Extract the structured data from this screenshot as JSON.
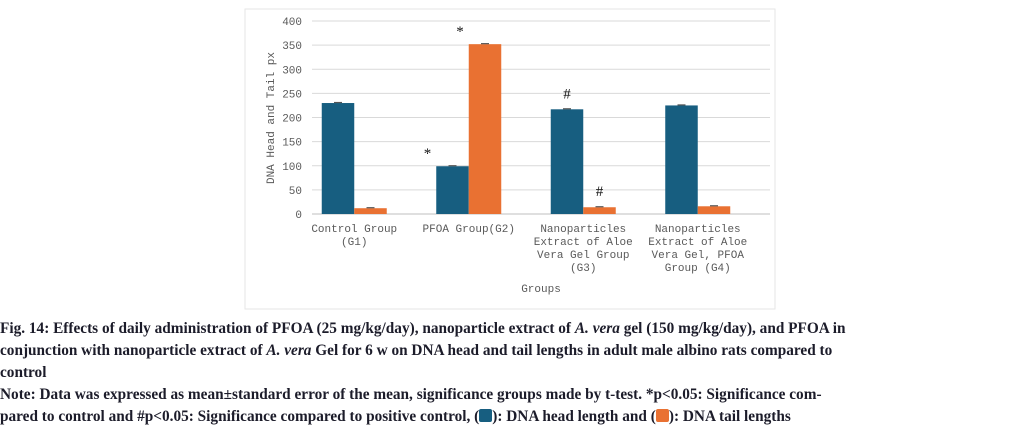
{
  "chart_data": {
    "type": "bar",
    "title": "",
    "xlabel": "Groups",
    "ylabel": "DNA Head and Tail px",
    "ylim": [
      0,
      400
    ],
    "yticks": [
      0,
      50,
      100,
      150,
      200,
      250,
      300,
      350,
      400
    ],
    "grid": true,
    "categories": [
      [
        "Control Group",
        "(G1)"
      ],
      [
        "PFOA Group(G2)"
      ],
      [
        "Nanoparticles",
        "Extract of Aloe",
        "Vera Gel Group",
        "(G3)"
      ],
      [
        "Nanoparticles",
        "Extract of Aloe",
        "Vera Gel, PFOA",
        "Group (G4)"
      ]
    ],
    "series": [
      {
        "color": "#175e80",
        "values": [
          230,
          99,
          217,
          225
        ]
      },
      {
        "color": "#e97132",
        "values": [
          12,
          352,
          14,
          16
        ]
      }
    ],
    "annotations": [
      {
        "group": 1,
        "series": 0,
        "text": "*"
      },
      {
        "group": 1,
        "series": 1,
        "text": "*"
      },
      {
        "group": 2,
        "series": 0,
        "text": "#"
      },
      {
        "group": 2,
        "series": 1,
        "text": "#"
      }
    ]
  },
  "caption": {
    "line1": "Fig. 14: Effects of daily administration of PFOA (25 mg/kg/day), nanoparticle extract of ",
    "line1_italic": "A. vera",
    "line1_end": " gel (150 mg/kg/day), and PFOA in",
    "line2": "conjunction with nanoparticle extract of ",
    "line2_italic": "A. vera",
    "line2_end": " Gel for 6 w on DNA head and tail lengths in adult male albino rats compared to",
    "line3": "control",
    "note1": "Note: Data was expressed as mean±standard error of the mean, significance groups made by t-test. *p<0.05: Significance com-",
    "note2": "pared to control and #p<0.05: Significance compared to positive control, (",
    "note2_mid": "): DNA head length and (",
    "note2_end": "): DNA tail lengths"
  }
}
